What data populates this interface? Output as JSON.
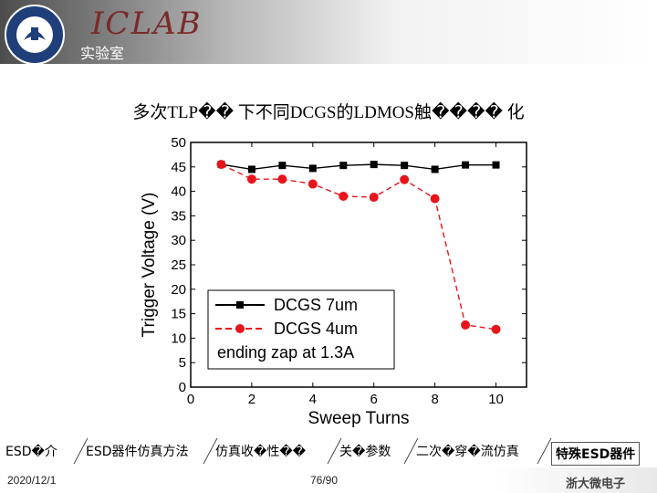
{
  "header": {
    "logo_title": "ICLAB",
    "logo_subtitle": "实验室"
  },
  "slide": {
    "title": "多次TLP�� 下不同DCGS的LDMOS触���� 化"
  },
  "chart_data": {
    "type": "line",
    "xlabel": "Sweep Turns",
    "ylabel": "Trigger Voltage (V)",
    "xlim": [
      0,
      11
    ],
    "ylim": [
      0,
      50
    ],
    "xticks": [
      0,
      2,
      4,
      6,
      8,
      10
    ],
    "yticks": [
      0,
      5,
      10,
      15,
      20,
      25,
      30,
      35,
      40,
      45,
      50
    ],
    "legend_position": "bottom-left",
    "legend_note": "ending zap at 1.3A",
    "series": [
      {
        "name": "DCGS 7um",
        "color": "#000000",
        "marker": "square",
        "dash": "solid",
        "x": [
          1,
          2,
          3,
          4,
          5,
          6,
          7,
          8,
          9,
          10
        ],
        "y": [
          45.5,
          44.5,
          45.3,
          44.7,
          45.3,
          45.5,
          45.3,
          44.5,
          45.4,
          45.4
        ]
      },
      {
        "name": "DCGS 4um",
        "color": "#e8141b",
        "marker": "circle",
        "dash": "dashed",
        "x": [
          1,
          2,
          3,
          4,
          5,
          6,
          7,
          8,
          9,
          10
        ],
        "y": [
          45.5,
          42.5,
          42.5,
          41.5,
          39.0,
          38.8,
          42.4,
          38.5,
          12.7,
          11.8
        ]
      }
    ]
  },
  "tabs": [
    {
      "label": "ESD�介"
    },
    {
      "label": "ESD器件仿真方法"
    },
    {
      "label": "仿真收�性��"
    },
    {
      "label": "关�参数"
    },
    {
      "label": "二次�穿�流仿真"
    },
    {
      "label": "特殊ESD器件"
    }
  ],
  "footer": {
    "date": "2020/12/1",
    "pages": "76/90",
    "brand": "浙大微电子"
  }
}
